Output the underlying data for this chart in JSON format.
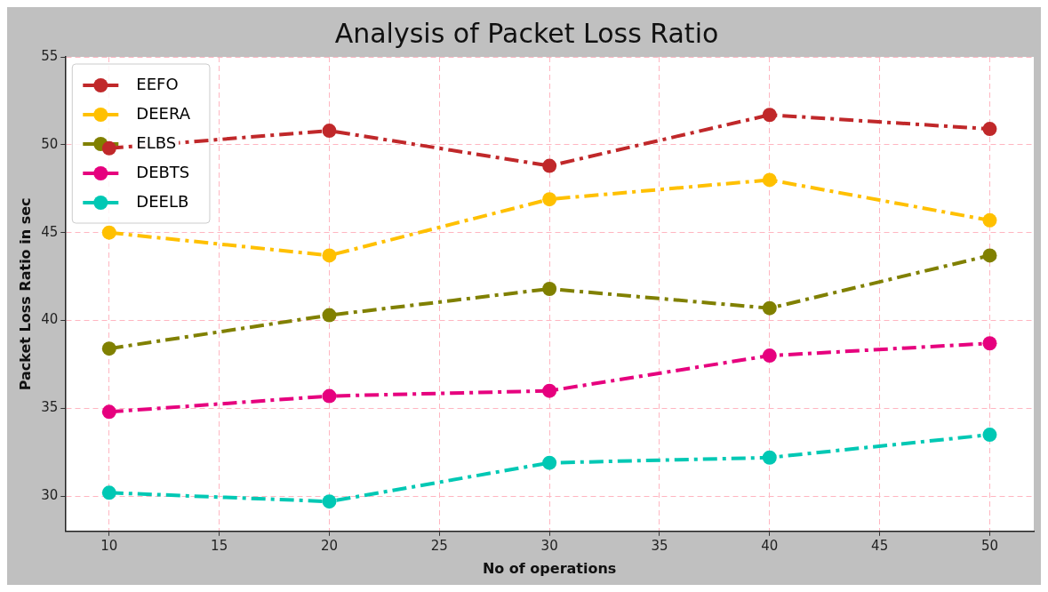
{
  "chart_data": {
    "type": "line",
    "title": "Analysis of Packet Loss Ratio",
    "xlabel": "No of operations",
    "ylabel": "Packet Loss Ratio in sec",
    "x": [
      10,
      20,
      30,
      40,
      50
    ],
    "series": [
      {
        "name": "EEFO",
        "color": "#c0282a",
        "values": [
          49.8,
          50.8,
          48.8,
          51.7,
          50.9
        ]
      },
      {
        "name": "DEERA",
        "color": "#ffc000",
        "values": [
          45.0,
          43.7,
          46.9,
          48.0,
          45.7
        ]
      },
      {
        "name": "ELBS",
        "color": "#808000",
        "values": [
          38.4,
          40.3,
          41.8,
          40.7,
          43.7
        ]
      },
      {
        "name": "DEBTS",
        "color": "#e6007e",
        "values": [
          34.8,
          35.7,
          36.0,
          38.0,
          38.7
        ]
      },
      {
        "name": "DEELB",
        "color": "#00c8b4",
        "values": [
          30.2,
          29.7,
          31.9,
          32.2,
          33.5
        ]
      }
    ],
    "xlim": [
      8,
      52
    ],
    "xticks": [
      10,
      15,
      20,
      25,
      30,
      35,
      40,
      45,
      50
    ],
    "ylim": [
      28,
      55
    ],
    "yticks": [
      30,
      35,
      40,
      45,
      50,
      55
    ],
    "grid": true,
    "legend": "top left",
    "marker": "circle",
    "line_style": "dashed"
  }
}
